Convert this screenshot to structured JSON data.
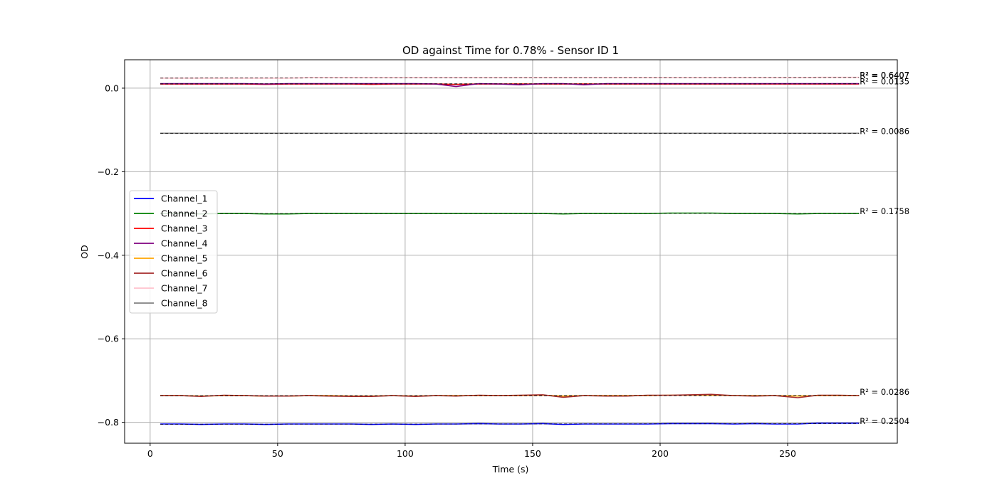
{
  "chart_data": {
    "type": "line",
    "title": "OD against Time for 0.78% - Sensor ID 1",
    "xlabel": "Time (s)",
    "ylabel": "OD",
    "xlim": [
      -10,
      293
    ],
    "ylim": [
      -0.85,
      0.068
    ],
    "xticks": [
      0,
      50,
      100,
      150,
      200,
      250
    ],
    "xtick_labels": [
      "0",
      "50",
      "100",
      "150",
      "200",
      "250"
    ],
    "yticks": [
      0.0,
      -0.2,
      -0.4,
      -0.6,
      -0.8
    ],
    "ytick_labels": [
      "0.0",
      "−0.2",
      "−0.4",
      "−0.6",
      "−0.8"
    ],
    "grid": true,
    "legend_position": "center-left",
    "x": [
      4,
      12,
      20,
      29,
      37,
      45,
      54,
      62,
      70,
      79,
      87,
      95,
      104,
      112,
      120,
      129,
      137,
      145,
      154,
      162,
      170,
      179,
      187,
      195,
      204,
      212,
      220,
      229,
      237,
      245,
      254,
      262,
      270,
      278
    ],
    "series": [
      {
        "name": "Channel_1",
        "color": "#0000ff",
        "fit_color": "#000000",
        "values": [
          -0.804,
          -0.804,
          -0.805,
          -0.804,
          -0.804,
          -0.805,
          -0.804,
          -0.804,
          -0.804,
          -0.804,
          -0.805,
          -0.804,
          -0.805,
          -0.804,
          -0.804,
          -0.803,
          -0.804,
          -0.804,
          -0.803,
          -0.805,
          -0.804,
          -0.804,
          -0.804,
          -0.804,
          -0.803,
          -0.803,
          -0.803,
          -0.804,
          -0.803,
          -0.804,
          -0.804,
          -0.802,
          -0.802,
          -0.802
        ]
      },
      {
        "name": "Channel_2",
        "color": "#008000",
        "fit_color": "#000000",
        "values": [
          -0.3,
          -0.3,
          -0.301,
          -0.3,
          -0.3,
          -0.301,
          -0.301,
          -0.3,
          -0.3,
          -0.3,
          -0.3,
          -0.3,
          -0.3,
          -0.3,
          -0.3,
          -0.3,
          -0.3,
          -0.3,
          -0.3,
          -0.301,
          -0.3,
          -0.3,
          -0.3,
          -0.3,
          -0.299,
          -0.299,
          -0.299,
          -0.3,
          -0.3,
          -0.3,
          -0.301,
          -0.3,
          -0.3,
          -0.3
        ]
      },
      {
        "name": "Channel_3",
        "color": "#ff0000",
        "fit_color": "#000000",
        "values": [
          0.01,
          0.01,
          0.01,
          0.01,
          0.01,
          0.009,
          0.01,
          0.01,
          0.01,
          0.01,
          0.009,
          0.01,
          0.01,
          0.01,
          0.009,
          0.01,
          0.01,
          0.01,
          0.01,
          0.01,
          0.01,
          0.01,
          0.01,
          0.01,
          0.01,
          0.01,
          0.01,
          0.01,
          0.01,
          0.01,
          0.01,
          0.01,
          0.01,
          0.01
        ]
      },
      {
        "name": "Channel_4",
        "color": "#800080",
        "fit_color": "#000000",
        "values": [
          0.011,
          0.011,
          0.011,
          0.011,
          0.011,
          0.01,
          0.011,
          0.011,
          0.011,
          0.011,
          0.011,
          0.011,
          0.011,
          0.01,
          0.004,
          0.011,
          0.01,
          0.008,
          0.011,
          0.011,
          0.008,
          0.011,
          0.011,
          0.011,
          0.011,
          0.011,
          0.011,
          0.011,
          0.011,
          0.011,
          0.011,
          0.011,
          0.011,
          0.011
        ]
      },
      {
        "name": "Channel_5",
        "color": "#ffa500",
        "fit_color": "#000000",
        "values": [
          -0.736,
          -0.736,
          -0.737,
          -0.736,
          -0.736,
          -0.737,
          -0.737,
          -0.736,
          -0.736,
          -0.737,
          -0.737,
          -0.736,
          -0.737,
          -0.736,
          -0.736,
          -0.736,
          -0.736,
          -0.736,
          -0.735,
          -0.737,
          -0.736,
          -0.736,
          -0.736,
          -0.736,
          -0.735,
          -0.735,
          -0.735,
          -0.736,
          -0.736,
          -0.736,
          -0.737,
          -0.736,
          -0.736,
          -0.736
        ]
      },
      {
        "name": "Channel_6",
        "color": "#a52a2a",
        "fit_color": "#000000",
        "values": [
          -0.736,
          -0.736,
          -0.738,
          -0.735,
          -0.736,
          -0.737,
          -0.737,
          -0.736,
          -0.737,
          -0.738,
          -0.738,
          -0.736,
          -0.738,
          -0.736,
          -0.737,
          -0.735,
          -0.736,
          -0.735,
          -0.734,
          -0.74,
          -0.736,
          -0.737,
          -0.737,
          -0.735,
          -0.735,
          -0.734,
          -0.733,
          -0.736,
          -0.737,
          -0.736,
          -0.741,
          -0.735,
          -0.735,
          -0.736
        ]
      },
      {
        "name": "Channel_7",
        "color": "#ffc0cb",
        "fit_color": "#000000",
        "values": [
          0.024,
          0.024,
          0.024,
          0.024,
          0.024,
          0.024,
          0.024,
          0.025,
          0.025,
          0.025,
          0.025,
          0.025,
          0.025,
          0.025,
          0.025,
          0.025,
          0.025,
          0.025,
          0.025,
          0.025,
          0.025,
          0.025,
          0.025,
          0.025,
          0.025,
          0.025,
          0.025,
          0.025,
          0.025,
          0.025,
          0.025,
          0.026,
          0.026,
          0.026
        ]
      },
      {
        "name": "Channel_8",
        "color": "#808080",
        "fit_color": "#000000",
        "values": [
          -0.108,
          -0.108,
          -0.108,
          -0.108,
          -0.108,
          -0.108,
          -0.108,
          -0.108,
          -0.108,
          -0.108,
          -0.108,
          -0.108,
          -0.108,
          -0.108,
          -0.108,
          -0.108,
          -0.108,
          -0.108,
          -0.108,
          -0.108,
          -0.108,
          -0.108,
          -0.108,
          -0.108,
          -0.108,
          -0.108,
          -0.108,
          -0.108,
          -0.108,
          -0.108,
          -0.108,
          -0.108,
          -0.108,
          -0.108
        ]
      }
    ],
    "annotations": [
      {
        "text": "R² = 0.6407",
        "x": 278,
        "y": 0.031
      },
      {
        "text": "R² = 0.6407",
        "x": 278,
        "y": 0.0305
      },
      {
        "text": "R² = 0.0135",
        "x": 278,
        "y": 0.016
      },
      {
        "text": "R² = 0.0086",
        "x": 278,
        "y": -0.103
      },
      {
        "text": "R² = 0.1758",
        "x": 278,
        "y": -0.295
      },
      {
        "text": "R² = 0.0286",
        "x": 278,
        "y": -0.727
      },
      {
        "text": "R² = 0.2504",
        "x": 278,
        "y": -0.797
      }
    ]
  }
}
